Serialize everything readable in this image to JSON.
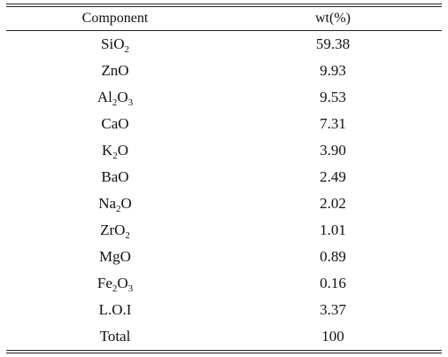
{
  "table": {
    "headers": [
      "Component",
      "wt(%)"
    ],
    "rows": [
      {
        "component": "SiO2",
        "parts": [
          {
            "t": "SiO",
            "s": ""
          },
          {
            "t": "",
            "s": "2"
          }
        ],
        "wt": "59.38"
      },
      {
        "component": "ZnO",
        "parts": [
          {
            "t": "ZnO",
            "s": ""
          }
        ],
        "wt": "9.93"
      },
      {
        "component": "Al2O3",
        "parts": [
          {
            "t": "Al",
            "s": ""
          },
          {
            "t": "",
            "s": "2"
          },
          {
            "t": "O",
            "s": ""
          },
          {
            "t": "",
            "s": "3"
          }
        ],
        "wt": "9.53"
      },
      {
        "component": "CaO",
        "parts": [
          {
            "t": "CaO",
            "s": ""
          }
        ],
        "wt": "7.31"
      },
      {
        "component": "K2O",
        "parts": [
          {
            "t": "K",
            "s": ""
          },
          {
            "t": "",
            "s": "2"
          },
          {
            "t": "O",
            "s": ""
          }
        ],
        "wt": "3.90"
      },
      {
        "component": "BaO",
        "parts": [
          {
            "t": "BaO",
            "s": ""
          }
        ],
        "wt": "2.49"
      },
      {
        "component": "Na2O",
        "parts": [
          {
            "t": "Na",
            "s": ""
          },
          {
            "t": "",
            "s": "2"
          },
          {
            "t": "O",
            "s": ""
          }
        ],
        "wt": "2.02"
      },
      {
        "component": "ZrO2",
        "parts": [
          {
            "t": "ZrO",
            "s": ""
          },
          {
            "t": "",
            "s": "2"
          }
        ],
        "wt": "1.01"
      },
      {
        "component": "MgO",
        "parts": [
          {
            "t": "MgO",
            "s": ""
          }
        ],
        "wt": "0.89"
      },
      {
        "component": "Fe2O3",
        "parts": [
          {
            "t": "Fe",
            "s": ""
          },
          {
            "t": "",
            "s": "2"
          },
          {
            "t": "O",
            "s": ""
          },
          {
            "t": "",
            "s": "3"
          }
        ],
        "wt": "0.16"
      },
      {
        "component": "L.O.I",
        "parts": [
          {
            "t": "L.O.I",
            "s": ""
          }
        ],
        "wt": "3.37"
      },
      {
        "component": "Total",
        "parts": [
          {
            "t": "Total",
            "s": ""
          }
        ],
        "wt": "100"
      }
    ]
  }
}
